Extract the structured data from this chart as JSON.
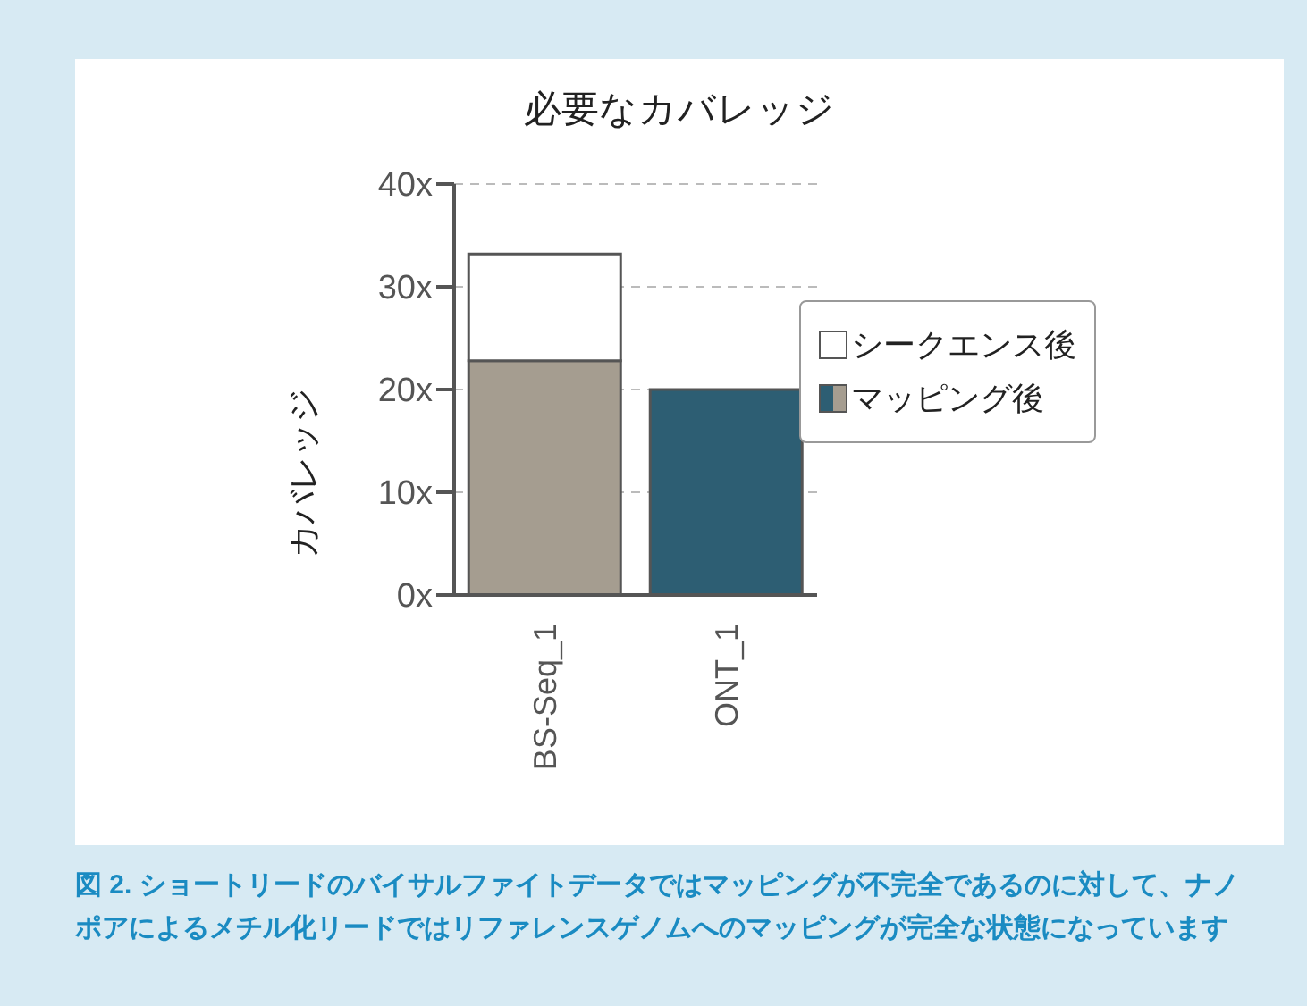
{
  "chart_data": {
    "type": "bar",
    "title": "必要なカバレッジ",
    "ylabel": "カバレッジ",
    "categories": [
      "BS-Seq_1",
      "ONT_1"
    ],
    "stacked": true,
    "series": [
      {
        "name": "マッピング後",
        "colors": [
          "#a59d90",
          "#2d5e73"
        ],
        "values": [
          22.8,
          20
        ]
      },
      {
        "name": "シークエンス後",
        "color": "#ffffff",
        "values": [
          10.4,
          0
        ]
      }
    ],
    "ylim": [
      0,
      40
    ],
    "yticks": [
      {
        "value": 0,
        "label": "0x"
      },
      {
        "value": 10,
        "label": "10x"
      },
      {
        "value": 20,
        "label": "20x"
      },
      {
        "value": 30,
        "label": "30x"
      },
      {
        "value": 40,
        "label": "40x"
      }
    ],
    "grid": "y",
    "legend": "right",
    "annotations": [
      "図 2. ショートリードのバイサルファイトデータではマッピングが不完全であるのに対して、ナノポアによるメチル化リードではリファレンスゲノムへのマッピングが完全な状態になっています"
    ]
  }
}
